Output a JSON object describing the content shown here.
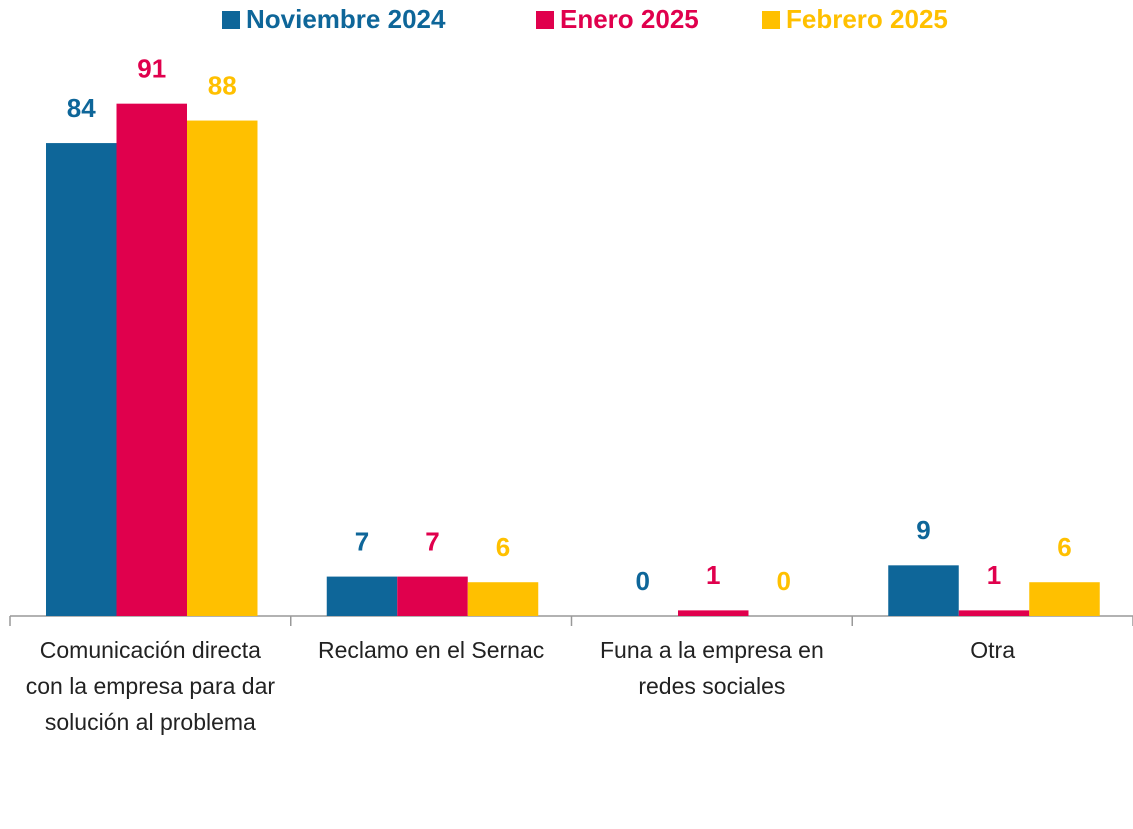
{
  "chart_data": {
    "type": "bar",
    "categories": [
      "Comunicación directa con la empresa para dar solución al problema",
      "Reclamo en el Sernac",
      "Funa a la empresa en redes sociales",
      "Otra"
    ],
    "series": [
      {
        "name": "Noviembre 2024",
        "color": "#0e6699",
        "values": [
          84,
          7,
          0,
          9
        ]
      },
      {
        "name": "Enero 2025",
        "color": "#e0004d",
        "values": [
          91,
          7,
          1,
          1
        ]
      },
      {
        "name": "Febrero 2025",
        "color": "#ffc000",
        "values": [
          88,
          6,
          0,
          6
        ]
      }
    ],
    "legend": "top"
  }
}
